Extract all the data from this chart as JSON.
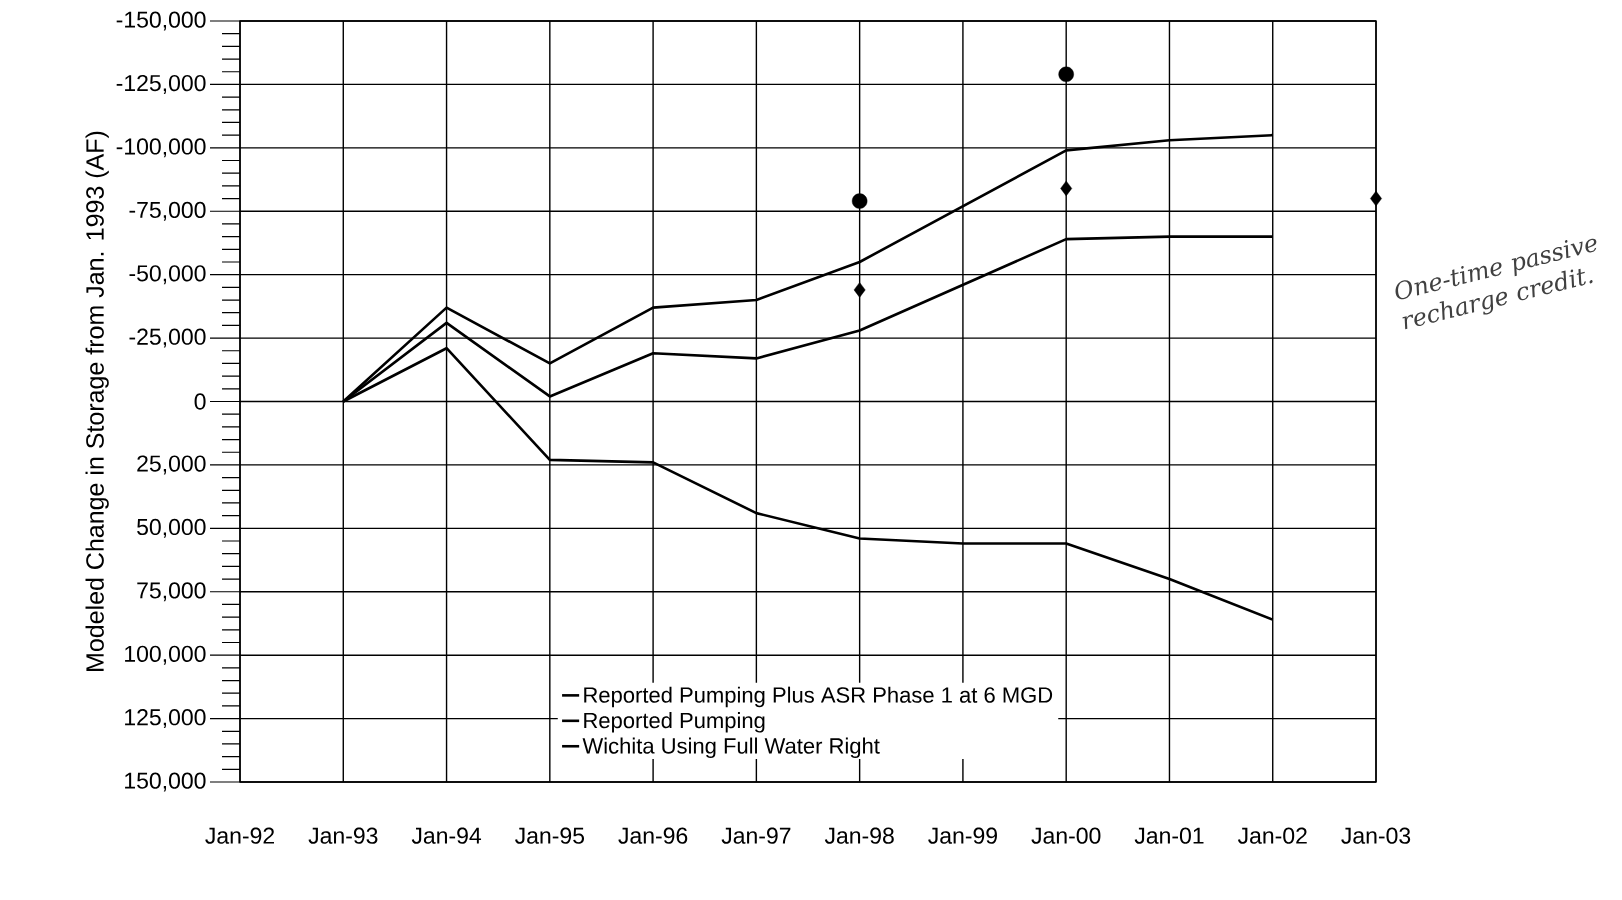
{
  "chart_data": {
    "type": "line",
    "ylabel": "Modeled Change in Storage from Jan. 1993 (AF)",
    "categories": [
      "Jan-92",
      "Jan-93",
      "Jan-94",
      "Jan-95",
      "Jan-96",
      "Jan-97",
      "Jan-98",
      "Jan-99",
      "Jan-00",
      "Jan-01",
      "Jan-02",
      "Jan-03"
    ],
    "ylim": [
      150000,
      -150000
    ],
    "yticks": [
      {
        "value": -150000,
        "label": "-150,000"
      },
      {
        "value": -125000,
        "label": "-125,000"
      },
      {
        "value": -100000,
        "label": "-100,000"
      },
      {
        "value": -75000,
        "label": "-75,000"
      },
      {
        "value": -50000,
        "label": "-50,000"
      },
      {
        "value": -25000,
        "label": "-25,000"
      },
      0,
      {
        "value": 25000,
        "label": "25,000"
      },
      {
        "value": 50000,
        "label": "50,000"
      },
      {
        "value": 75000,
        "label": "75,000"
      },
      {
        "value": 100000,
        "label": "100,000"
      },
      {
        "value": 125000,
        "label": "125,000"
      },
      {
        "value": 150000,
        "label": "150,000"
      }
    ],
    "grid": true,
    "legend": "bottom",
    "marker": "none",
    "line_style": "solid",
    "series": [
      {
        "name": "Reported Pumping Plus ASR Phase 1 at 6 MGD",
        "color": "#000000",
        "values": [
          null,
          0,
          -37000,
          -15000,
          -37000,
          -40000,
          -55000,
          -77000,
          -99000,
          -103000,
          -105000,
          null
        ]
      },
      {
        "name": "Reported Pumping",
        "color": "#000000",
        "values": [
          null,
          0,
          -31000,
          -2000,
          -19000,
          -17000,
          -28000,
          -46000,
          -64000,
          -65000,
          -65000,
          null
        ]
      },
      {
        "name": "Wichita Using Full Water Right",
        "color": "#000000",
        "values": [
          null,
          0,
          -21000,
          23000,
          24000,
          44000,
          54000,
          56000,
          56000,
          70000,
          86000,
          null
        ]
      },
      {
        "type": "scatter",
        "marker": "circle",
        "color": "#000000",
        "x": [
          "Jan-98",
          "Jan-00"
        ],
        "values": [
          -79000,
          -129000
        ]
      },
      {
        "type": "scatter",
        "marker": "diamond",
        "color": "#000000",
        "x": [
          "Jan-98",
          "Jan-00",
          "Jan-03"
        ],
        "values": [
          -44000,
          -84000,
          -80000
        ]
      }
    ],
    "annotations": [
      "One-time passive recharge credit."
    ]
  }
}
